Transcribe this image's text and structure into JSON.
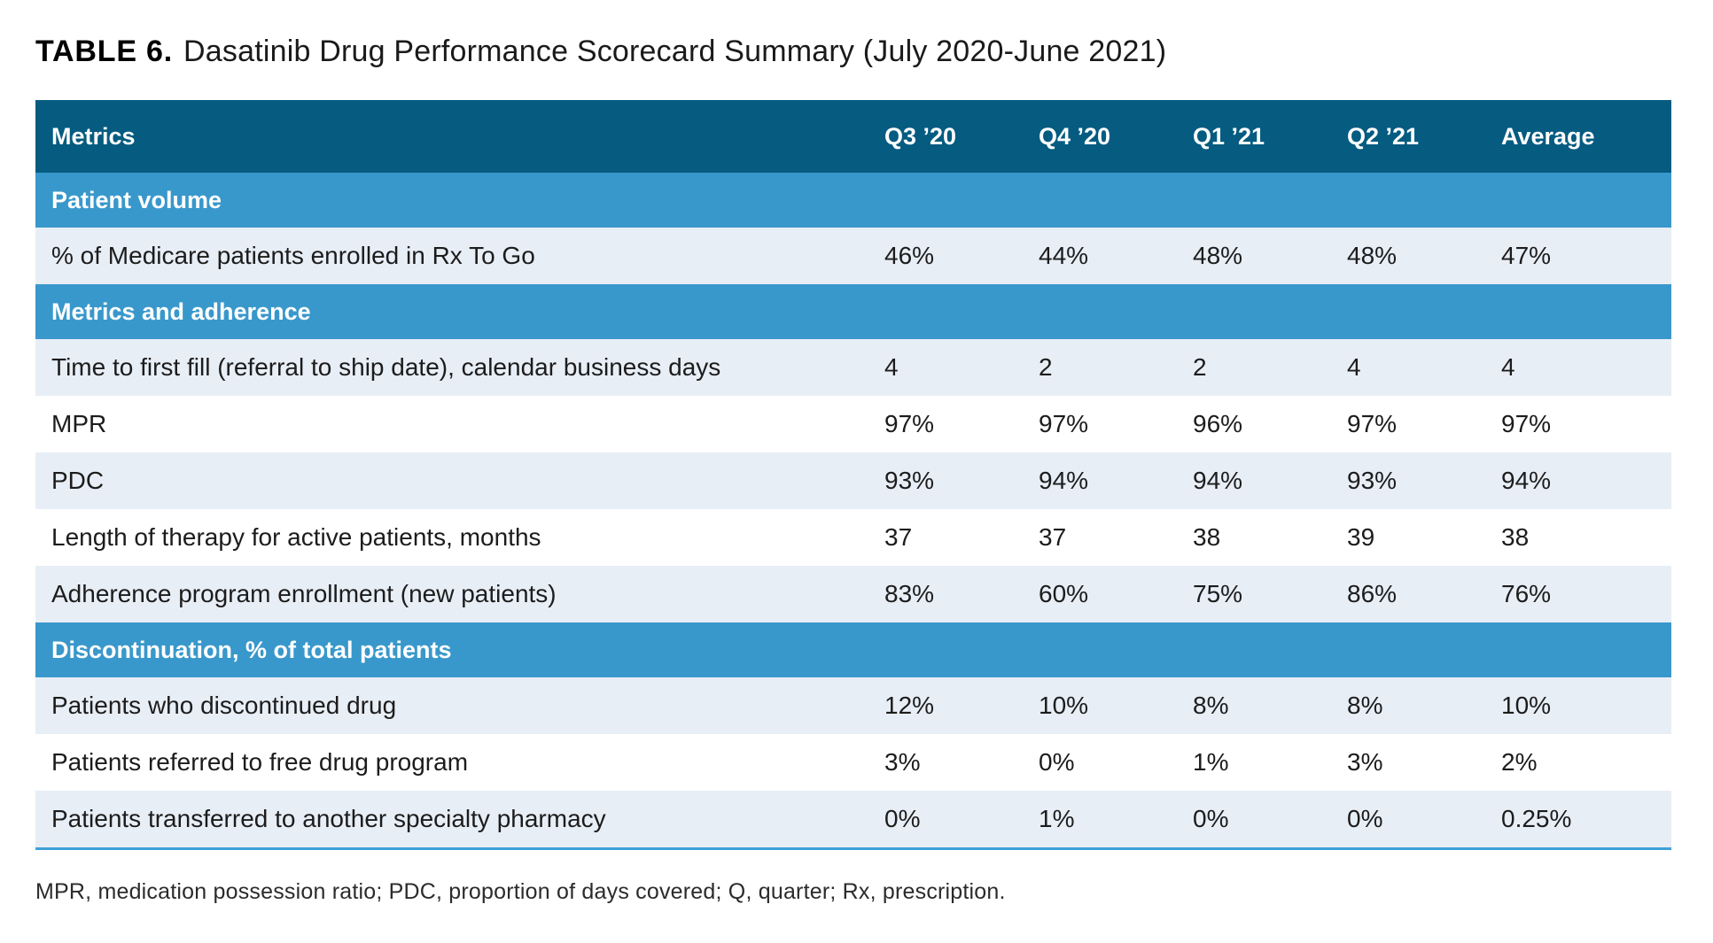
{
  "title": {
    "label": "TABLE 6.",
    "caption": "Dasatinib Drug Performance Scorecard Summary (July 2020-June 2021)"
  },
  "table": {
    "columns": [
      "Metrics",
      "Q3 ’20",
      "Q4 ’20",
      "Q1 ’21",
      "Q2 ’21",
      "Average"
    ],
    "sections": [
      {
        "header": "Patient volume",
        "rows": [
          {
            "metric": "% of Medicare patients enrolled in Rx To Go",
            "values": [
              "46%",
              "44%",
              "48%",
              "48%",
              "47%"
            ]
          }
        ]
      },
      {
        "header": "Metrics and adherence",
        "rows": [
          {
            "metric": "Time to first fill (referral to ship date), calendar business days",
            "values": [
              "4",
              "2",
              "2",
              "4",
              "4"
            ]
          },
          {
            "metric": "MPR",
            "values": [
              "97%",
              "97%",
              "96%",
              "97%",
              "97%"
            ]
          },
          {
            "metric": "PDC",
            "values": [
              "93%",
              "94%",
              "94%",
              "93%",
              "94%"
            ]
          },
          {
            "metric": "Length of therapy for active patients, months",
            "values": [
              "37",
              "37",
              "38",
              "39",
              "38"
            ]
          },
          {
            "metric": "Adherence program enrollment (new patients)",
            "values": [
              "83%",
              "60%",
              "75%",
              "86%",
              "76%"
            ]
          }
        ]
      },
      {
        "header": "Discontinuation, % of total patients",
        "rows": [
          {
            "metric": "Patients who discontinued drug",
            "values": [
              "12%",
              "10%",
              "8%",
              "8%",
              "10%"
            ]
          },
          {
            "metric": "Patients referred to free drug program",
            "values": [
              "3%",
              "0%",
              "1%",
              "3%",
              "2%"
            ]
          },
          {
            "metric": "Patients transferred to another specialty pharmacy",
            "values": [
              "0%",
              "1%",
              "0%",
              "0%",
              "0.25%"
            ]
          }
        ]
      }
    ]
  },
  "footnote": "MPR, medication possession ratio; PDC, proportion of days covered; Q, quarter; Rx, prescription.",
  "colors": {
    "header_bg": "#055B80",
    "section_bg": "#3998CB",
    "row_alt_bg": "#E8EEF6",
    "row_bg": "#FFFFFF",
    "bottom_rule": "#3FA0D8",
    "header_text": "#FFFFFF",
    "data_text": "#1C1C1C"
  }
}
